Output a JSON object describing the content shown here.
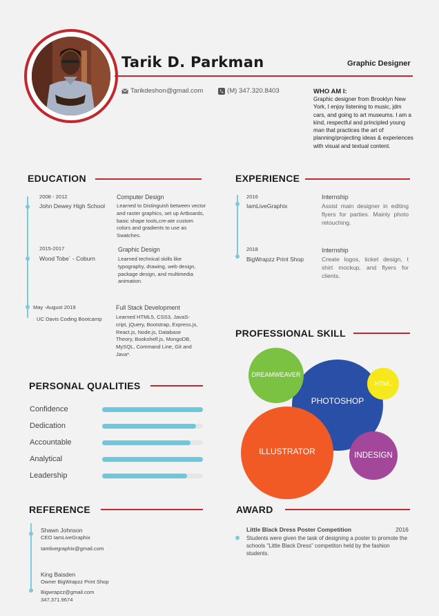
{
  "header": {
    "name": "Tarik D. Parkman",
    "role": "Graphic Designer",
    "email": "Tarikdeshon@gmail.com",
    "phone": "(M) 347.320.8403",
    "who_title": "WHO AM I:",
    "who_text": "Graphic designer from Brooklyn New York, I enjoy listening to music, jdm cars, and going to art museums. I am a kind, respectful and principled young man that practices the art of planning/projecting ideas & experiences with visual and textual content."
  },
  "education": {
    "heading": "EDUCATION",
    "items": [
      {
        "years": "2008 - 2012",
        "school": "John Dewey High School",
        "title": "Computer Design",
        "desc": "Learned to Distinguish between vector and raster graphics, set up Artboards, basic shape tools,cre-ate custom colors and gradients to use as Swatches."
      },
      {
        "years": "2015-2017",
        "school": "Wood Tobe´ - Coburn",
        "title": "Graphic Design",
        "desc": "Learned technical skills like typography, drawing, web design, package design, and multimedia animation."
      },
      {
        "years": "May -August 2019",
        "school": "UC Davis Coding Bootcamp",
        "title": "Full Stack Development",
        "desc": "Learned HTML5, CSS3, JavaS-cript, jQuery, Bootstrap, Express.js, React.js, Node.js, Database Theory, Bookshelf.js, MongoDB, MySQL, Command Line, Git and Java*."
      }
    ]
  },
  "experience": {
    "heading": "EXPERIENCE",
    "items": [
      {
        "year": "2016",
        "company": "IamLiveGraphix",
        "title": "Internship",
        "desc": "Assist main designer in editing flyers for parties. Mainly photo retouching."
      },
      {
        "year": "2018",
        "company": "BigWrapzz Print Shop",
        "title": "Internship",
        "desc": "Create logos, ticket design, t shirt mockup, and flyers for clients."
      }
    ]
  },
  "qualities": {
    "heading": "PERSONAL QUALITIES",
    "items": [
      {
        "label": "Confidence",
        "level": 1.0
      },
      {
        "label": "Dedication",
        "level": 0.93
      },
      {
        "label": "Accountable",
        "level": 0.88
      },
      {
        "label": "Analytical",
        "level": 1.0
      },
      {
        "label": "Leadership",
        "level": 0.84
      }
    ]
  },
  "skills": {
    "heading": "PROFESSIONAL SKILL",
    "items": [
      {
        "label": "DREAMWEAVER",
        "color": "#7bc142"
      },
      {
        "label": "PHOTOSHOP",
        "color": "#2a4fa6"
      },
      {
        "label": "HTML",
        "color": "#f6e81c"
      },
      {
        "label": "ILLUSTRATOR",
        "color": "#f15a24"
      },
      {
        "label": "INDESIGN",
        "color": "#a3479b"
      }
    ]
  },
  "reference": {
    "heading": "REFERENCE",
    "items": [
      {
        "name": "Shawn Johnson",
        "role": "CEO IamLiveGraphix",
        "email": "Iamlivegraphix@gmail.com",
        "phone": ""
      },
      {
        "name": "King Baisden",
        "role": "Owner BigWrapzz Print Shop",
        "email": "Bigwrapzz@gmail.com",
        "phone": "347.371.9674"
      }
    ]
  },
  "award": {
    "heading": "AWARD",
    "title": "Little Black Dress Poster Competition",
    "year": "2016",
    "desc": "Students were given the task of designing a poster to promote the schools \"Little Black Dress\" competiton held by the fashion students."
  },
  "colors": {
    "accent": "#c2272d",
    "timeline": "#7ec8dc",
    "bar": "#6ec8dc"
  }
}
